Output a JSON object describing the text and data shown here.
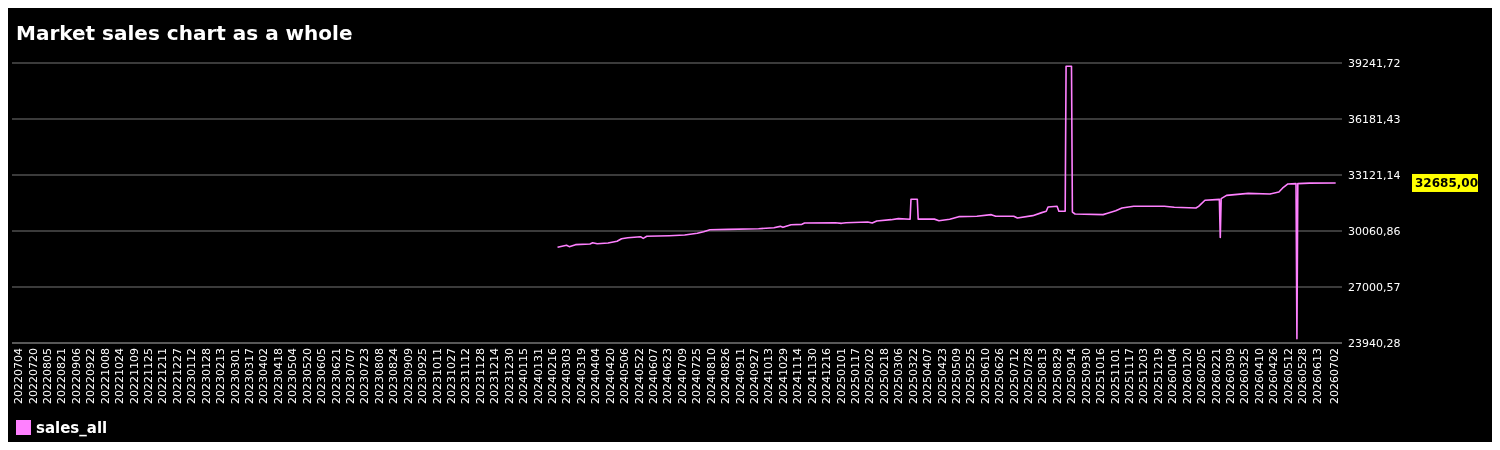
{
  "chart_data": {
    "type": "line",
    "title": "Market sales chart as a whole",
    "xlim": [
      "2022-06-27",
      "2026-07-11"
    ],
    "ylim": [
      23940.28,
      39241.72
    ],
    "yticks": [
      {
        "value": 23940.28,
        "label": "23940,28"
      },
      {
        "value": 27000.57,
        "label": "27000,57"
      },
      {
        "value": 30060.86,
        "label": "30060,86"
      },
      {
        "value": 33121.14,
        "label": "33121,14"
      },
      {
        "value": 36181.43,
        "label": "36181,43"
      },
      {
        "value": 39241.72,
        "label": "39241,72"
      }
    ],
    "xticks": [
      {
        "value": "2022-07-04",
        "label": "20220704"
      },
      {
        "value": "2022-07-20",
        "label": "20220720"
      },
      {
        "value": "2022-08-05",
        "label": "20220805"
      },
      {
        "value": "2022-08-21",
        "label": "20220821"
      },
      {
        "value": "2022-09-06",
        "label": "20220906"
      },
      {
        "value": "2022-09-22",
        "label": "20220922"
      },
      {
        "value": "2022-10-08",
        "label": "20221008"
      },
      {
        "value": "2022-10-24",
        "label": "20221024"
      },
      {
        "value": "2022-11-09",
        "label": "20221109"
      },
      {
        "value": "2022-11-25",
        "label": "20221125"
      },
      {
        "value": "2022-12-11",
        "label": "20221211"
      },
      {
        "value": "2022-12-27",
        "label": "20221227"
      },
      {
        "value": "2023-01-12",
        "label": "20230112"
      },
      {
        "value": "2023-01-28",
        "label": "20230128"
      },
      {
        "value": "2023-02-13",
        "label": "20230213"
      },
      {
        "value": "2023-03-01",
        "label": "20230301"
      },
      {
        "value": "2023-03-17",
        "label": "20230317"
      },
      {
        "value": "2023-04-02",
        "label": "20230402"
      },
      {
        "value": "2023-04-18",
        "label": "20230418"
      },
      {
        "value": "2023-05-04",
        "label": "20230504"
      },
      {
        "value": "2023-05-20",
        "label": "20230520"
      },
      {
        "value": "2023-06-05",
        "label": "20230605"
      },
      {
        "value": "2023-06-21",
        "label": "20230621"
      },
      {
        "value": "2023-07-07",
        "label": "20230707"
      },
      {
        "value": "2023-07-23",
        "label": "20230723"
      },
      {
        "value": "2023-08-08",
        "label": "20230808"
      },
      {
        "value": "2023-08-24",
        "label": "20230824"
      },
      {
        "value": "2023-09-09",
        "label": "20230909"
      },
      {
        "value": "2023-09-25",
        "label": "20230925"
      },
      {
        "value": "2023-10-11",
        "label": "20231011"
      },
      {
        "value": "2023-10-27",
        "label": "20231027"
      },
      {
        "value": "2023-11-12",
        "label": "20231112"
      },
      {
        "value": "2023-11-28",
        "label": "20231128"
      },
      {
        "value": "2023-12-14",
        "label": "20231214"
      },
      {
        "value": "2023-12-30",
        "label": "20231230"
      },
      {
        "value": "2024-01-15",
        "label": "20240115"
      },
      {
        "value": "2024-01-31",
        "label": "20240131"
      },
      {
        "value": "2024-02-16",
        "label": "20240216"
      },
      {
        "value": "2024-03-03",
        "label": "20240303"
      },
      {
        "value": "2024-03-19",
        "label": "20240319"
      },
      {
        "value": "2024-04-04",
        "label": "20240404"
      },
      {
        "value": "2024-04-20",
        "label": "20240420"
      },
      {
        "value": "2024-05-06",
        "label": "20240506"
      },
      {
        "value": "2024-05-22",
        "label": "20240522"
      },
      {
        "value": "2024-06-07",
        "label": "20240607"
      },
      {
        "value": "2024-06-23",
        "label": "20240623"
      },
      {
        "value": "2024-07-09",
        "label": "20240709"
      },
      {
        "value": "2024-07-25",
        "label": "20240725"
      },
      {
        "value": "2024-08-10",
        "label": "20240810"
      },
      {
        "value": "2024-08-26",
        "label": "20240826"
      },
      {
        "value": "2024-09-11",
        "label": "20240911"
      },
      {
        "value": "2024-09-27",
        "label": "20240927"
      },
      {
        "value": "2024-10-13",
        "label": "20241013"
      },
      {
        "value": "2024-10-29",
        "label": "20241029"
      },
      {
        "value": "2024-11-14",
        "label": "20241114"
      },
      {
        "value": "2024-11-30",
        "label": "20241130"
      },
      {
        "value": "2024-12-16",
        "label": "20241216"
      },
      {
        "value": "2025-01-01",
        "label": "20250101"
      },
      {
        "value": "2025-01-17",
        "label": "20250117"
      },
      {
        "value": "2025-02-02",
        "label": "20250202"
      },
      {
        "value": "2025-02-18",
        "label": "20250218"
      },
      {
        "value": "2025-03-06",
        "label": "20250306"
      },
      {
        "value": "2025-03-22",
        "label": "20250322"
      },
      {
        "value": "2025-04-07",
        "label": "20250407"
      },
      {
        "value": "2025-04-23",
        "label": "20250423"
      },
      {
        "value": "2025-05-09",
        "label": "20250509"
      },
      {
        "value": "2025-05-25",
        "label": "20250525"
      },
      {
        "value": "2025-06-10",
        "label": "20250610"
      },
      {
        "value": "2025-06-26",
        "label": "20250626"
      },
      {
        "value": "2025-07-12",
        "label": "20250712"
      },
      {
        "value": "2025-07-28",
        "label": "20250728"
      },
      {
        "value": "2025-08-13",
        "label": "20250813"
      },
      {
        "value": "2025-08-29",
        "label": "20250829"
      },
      {
        "value": "2025-09-14",
        "label": "20250914"
      },
      {
        "value": "2025-09-30",
        "label": "20250930"
      },
      {
        "value": "2025-10-16",
        "label": "20251016"
      },
      {
        "value": "2025-11-01",
        "label": "20251101"
      },
      {
        "value": "2025-11-17",
        "label": "20251117"
      },
      {
        "value": "2025-12-03",
        "label": "20251203"
      },
      {
        "value": "2025-12-19",
        "label": "20251219"
      },
      {
        "value": "2026-01-04",
        "label": "20260104"
      },
      {
        "value": "2026-01-20",
        "label": "20260120"
      },
      {
        "value": "2026-02-05",
        "label": "20260205"
      },
      {
        "value": "2026-02-21",
        "label": "20260221"
      },
      {
        "value": "2026-03-09",
        "label": "20260309"
      },
      {
        "value": "2026-03-25",
        "label": "20260325"
      },
      {
        "value": "2026-04-10",
        "label": "20260410"
      },
      {
        "value": "2026-04-26",
        "label": "20260426"
      },
      {
        "value": "2026-05-12",
        "label": "20260512"
      },
      {
        "value": "2026-05-28",
        "label": "20260528"
      },
      {
        "value": "2026-06-13",
        "label": "20260613"
      },
      {
        "value": "2026-07-02",
        "label": "20260702"
      }
    ],
    "grid": "y",
    "legend": "bottom left",
    "annotations": [
      "32685,00"
    ],
    "series": [
      {
        "name": "sales_all",
        "color": "#ff80ff",
        "x": [
          "2024-02-22",
          "2024-03-03",
          "2024-03-06",
          "2024-03-13",
          "2024-03-29",
          "2024-04-01",
          "2024-04-06",
          "2024-04-18",
          "2024-04-28",
          "2024-05-03",
          "2024-05-10",
          "2024-05-24",
          "2024-05-27",
          "2024-05-31",
          "2024-06-25",
          "2024-07-12",
          "2024-07-26",
          "2024-08-02",
          "2024-08-09",
          "2024-08-29",
          "2024-10-02",
          "2024-10-19",
          "2024-10-26",
          "2024-10-29",
          "2024-11-07",
          "2024-11-19",
          "2024-11-22",
          "2024-12-26",
          "2025-01-02",
          "2025-01-07",
          "2025-01-31",
          "2025-02-05",
          "2025-02-10",
          "2025-02-26",
          "2025-03-06",
          "2025-03-19",
          "2025-03-20",
          "2025-03-27",
          "2025-03-28",
          "2025-04-15",
          "2025-04-20",
          "2025-05-02",
          "2025-05-12",
          "2025-06-01",
          "2025-06-17",
          "2025-06-22",
          "2025-07-12",
          "2025-07-16",
          "2025-08-02",
          "2025-08-12",
          "2025-08-17",
          "2025-08-19",
          "2025-08-29",
          "2025-08-31",
          "2025-09-07",
          "2025-09-08",
          "2025-09-14",
          "2025-09-15",
          "2025-09-18",
          "2025-10-19",
          "2025-10-24",
          "2025-11-02",
          "2025-11-09",
          "2025-11-22",
          "2025-12-26",
          "2026-01-06",
          "2026-01-30",
          "2026-02-02",
          "2026-02-09",
          "2026-02-21",
          "2026-02-25",
          "2026-02-26",
          "2026-02-27",
          "2026-03-05",
          "2026-03-29",
          "2026-04-22",
          "2026-05-02",
          "2026-05-06",
          "2026-05-12",
          "2026-05-21",
          "2026-05-22",
          "2026-05-23",
          "2026-06-05",
          "2026-07-04"
        ],
        "values": [
          29170,
          29280,
          29205,
          29315,
          29350,
          29420,
          29365,
          29405,
          29500,
          29640,
          29695,
          29750,
          29660,
          29770,
          29805,
          29840,
          29935,
          30025,
          30130,
          30150,
          30185,
          30240,
          30315,
          30260,
          30405,
          30425,
          30500,
          30515,
          30480,
          30515,
          30555,
          30500,
          30610,
          30680,
          30735,
          30700,
          31795,
          31795,
          30710,
          30710,
          30625,
          30700,
          30845,
          30865,
          30955,
          30865,
          30865,
          30770,
          30900,
          31065,
          31140,
          31375,
          31410,
          31140,
          31140,
          39062,
          39062,
          31095,
          30990,
          30955,
          31030,
          31170,
          31320,
          31410,
          31410,
          31355,
          31320,
          31410,
          31740,
          31775,
          31790,
          29710,
          31830,
          32010,
          32115,
          32080,
          32190,
          32400,
          32630,
          32650,
          24175,
          32650,
          32675,
          32685
        ]
      }
    ]
  }
}
